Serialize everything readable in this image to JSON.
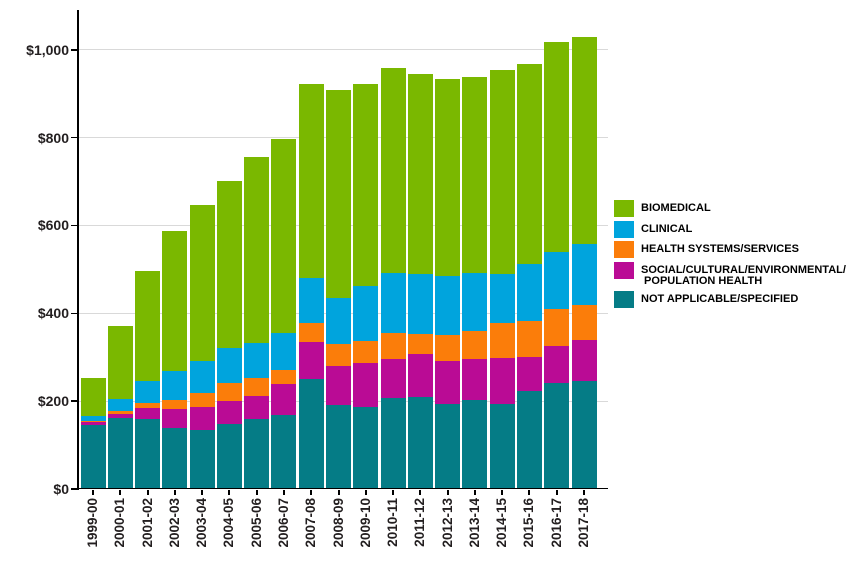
{
  "chart_data": {
    "type": "bar",
    "stacked": true,
    "grid": true,
    "legend_position": "right",
    "x_tick_rotation": 90,
    "categories": [
      "1999-00",
      "2000-01",
      "2001-02",
      "2002-03",
      "2003-04",
      "2004-05",
      "2005-06",
      "2006-07",
      "2007-08",
      "2008-09",
      "2009-10",
      "2010-11",
      "2011-12",
      "2012-13",
      "2013-14",
      "2014-15",
      "2015-16",
      "2016-17",
      "2017-18"
    ],
    "series": [
      {
        "name": "NOT APPLICABLE/SPECIFIED",
        "color": "#057c86",
        "values": [
          147,
          163,
          161,
          141,
          136,
          150,
          161,
          170,
          252,
          193,
          188,
          209,
          211,
          195,
          204,
          195,
          225,
          243,
          247
        ]
      },
      {
        "name": "SOCIAL/CULTURAL/ENVIRONMENTAL/POPULATION HEALTH",
        "color": "#ba0b95",
        "values": [
          7,
          9,
          25,
          43,
          52,
          52,
          52,
          70,
          84,
          88,
          100,
          88,
          97,
          98,
          93,
          104,
          77,
          84,
          93
        ]
      },
      {
        "name": "HEALTH SYSTEMS/SERVICES",
        "color": "#fb7d0a",
        "values": [
          2,
          7,
          11,
          20,
          32,
          41,
          41,
          32,
          43,
          50,
          50,
          59,
          46,
          59,
          64,
          80,
          81,
          84,
          80
        ]
      },
      {
        "name": "CLINICAL",
        "color": "#00a4dd",
        "values": [
          12,
          27,
          50,
          66,
          73,
          79,
          79,
          84,
          102,
          104,
          125,
          136,
          136,
          133,
          133,
          111,
          130,
          129,
          140
        ]
      },
      {
        "name": "BIOMEDICAL",
        "color": "#7ab800",
        "values": [
          84,
          164,
          250,
          317,
          353,
          379,
          422,
          440,
          442,
          474,
          460,
          467,
          456,
          449,
          445,
          463,
          455,
          478,
          470
        ]
      }
    ],
    "totals": [
      252,
      370,
      497,
      587,
      646,
      701,
      755,
      796,
      923,
      909,
      923,
      959,
      946,
      934,
      939,
      953,
      968,
      1018,
      1030
    ],
    "y_ticks": [
      {
        "label": "$1,000",
        "value": 1000
      },
      {
        "label": "$800",
        "value": 800
      },
      {
        "label": "$600",
        "value": 600
      },
      {
        "label": "$400",
        "value": 400
      },
      {
        "label": "$200",
        "value": 200
      },
      {
        "label": "$0",
        "value": 0
      }
    ],
    "ylim": [
      0,
      1090
    ],
    "legend": [
      {
        "name": "BIOMEDICAL",
        "color": "#7ab800",
        "lines": [
          "BIOMEDICAL"
        ]
      },
      {
        "name": "CLINICAL",
        "color": "#00a4dd",
        "lines": [
          "CLINICAL"
        ]
      },
      {
        "name": "HEALTH SYSTEMS/SERVICES",
        "color": "#fb7d0a",
        "lines": [
          "HEALTH SYSTEMS/SERVICES"
        ]
      },
      {
        "name": "SOCIAL/CULTURAL/ENVIRONMENTAL/POPULATION HEALTH",
        "color": "#ba0b95",
        "lines": [
          "SOCIAL/CULTURAL/ENVIRONMENTAL/",
          " POPULATION HEALTH"
        ]
      },
      {
        "name": "NOT APPLICABLE/SPECIFIED",
        "color": "#057c86",
        "lines": [
          "NOT APPLICABLE/SPECIFIED"
        ]
      }
    ]
  }
}
